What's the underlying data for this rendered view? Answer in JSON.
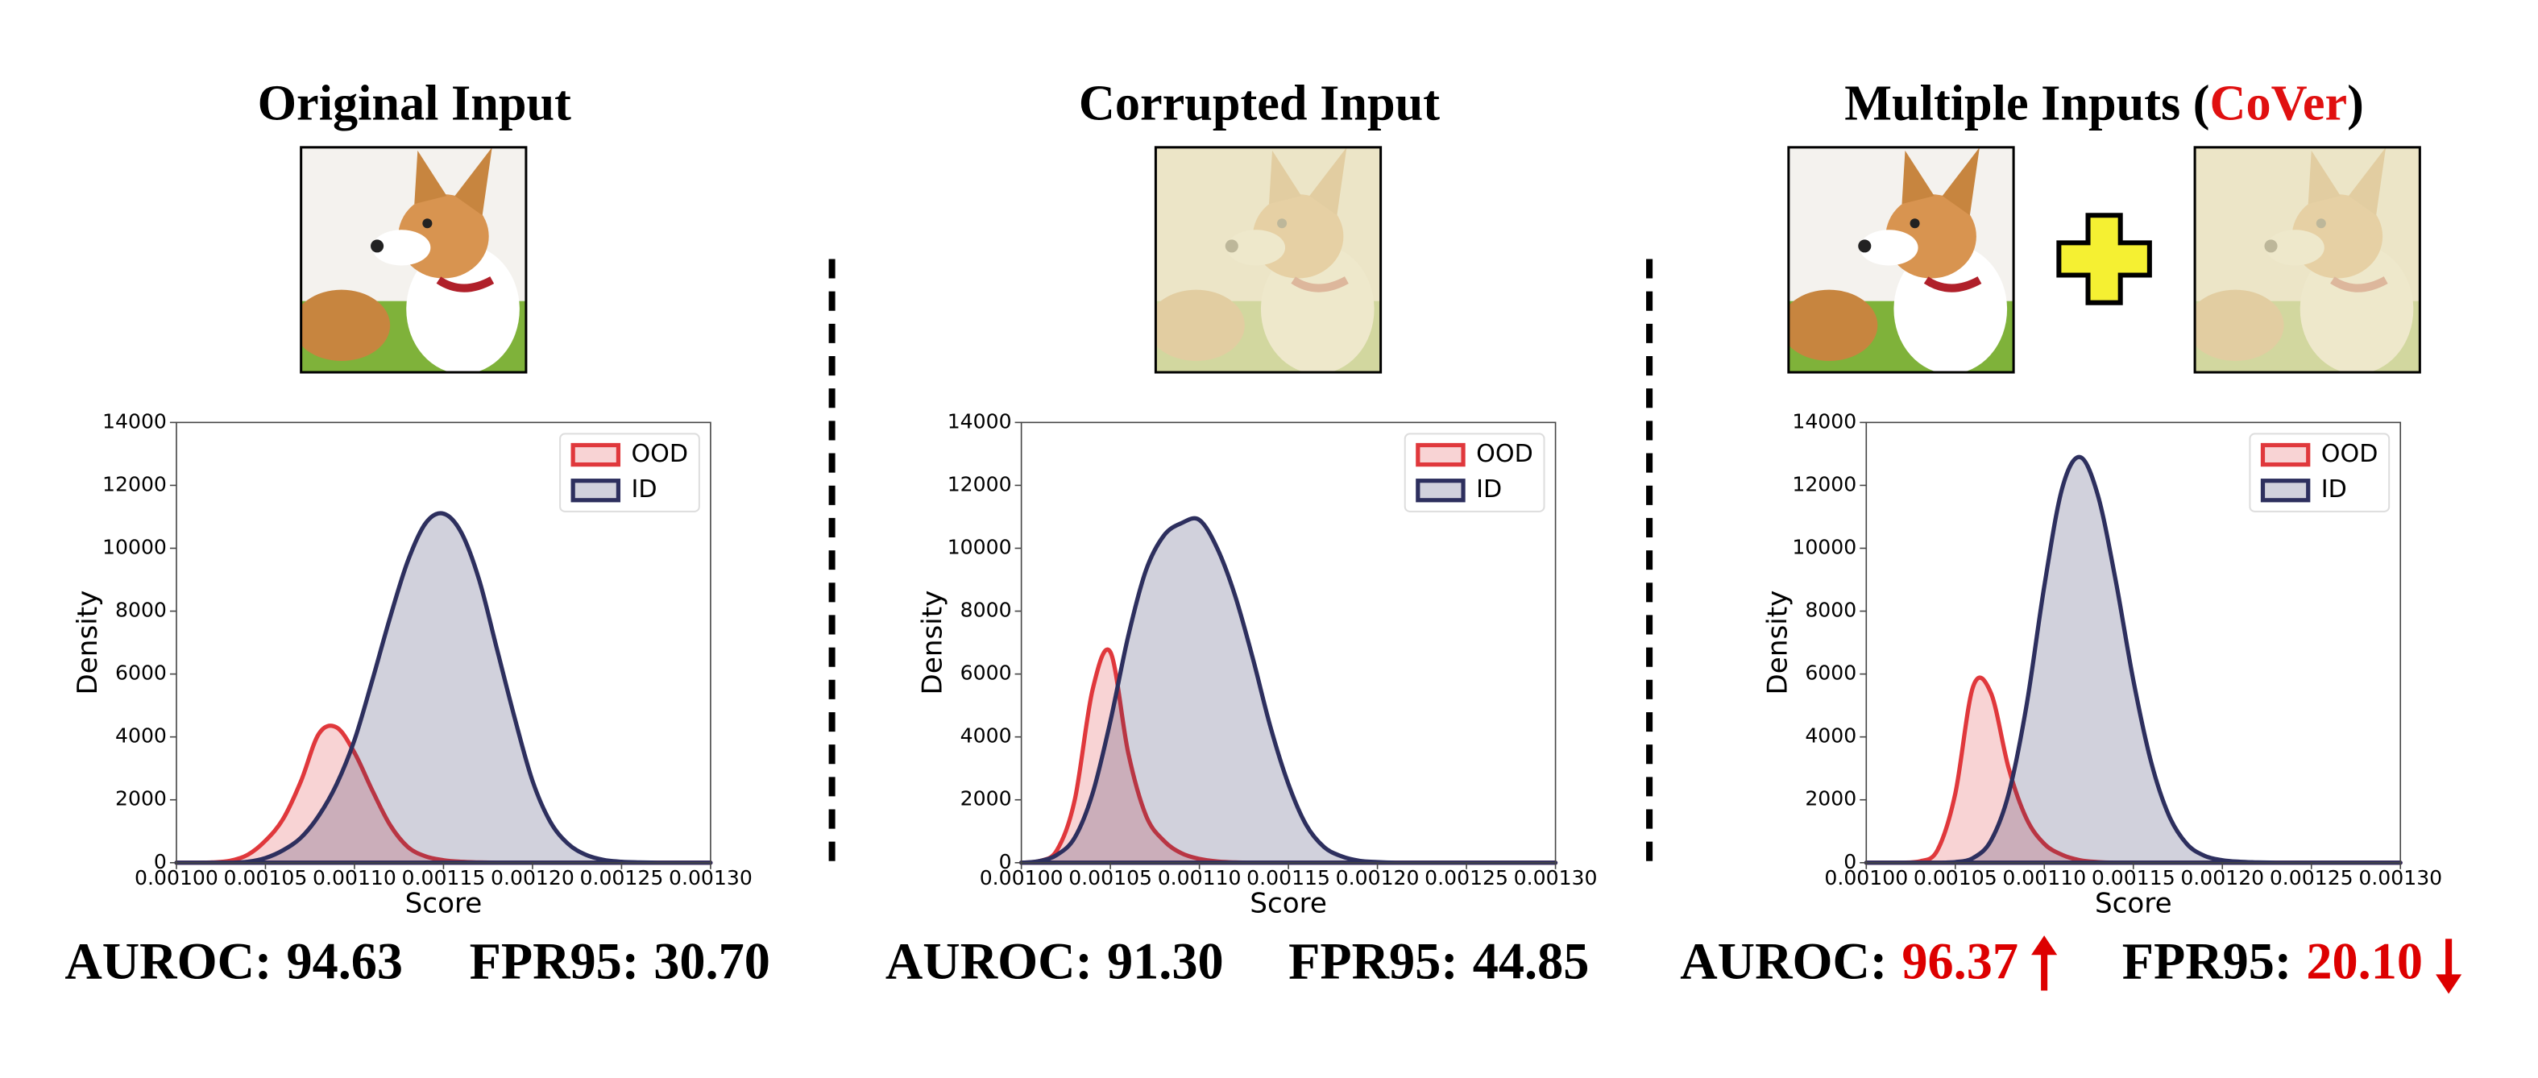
{
  "chart_data": [
    {
      "type": "kde",
      "title": [
        "Original Input"
      ],
      "title_colors": [
        "#000000"
      ],
      "xlabel": "Score",
      "ylabel": "Density",
      "x": [
        0.001,
        0.00101,
        0.00102,
        0.00103,
        0.00104,
        0.00105,
        0.00106,
        0.00107,
        0.00108,
        0.00109,
        0.0011,
        0.00111,
        0.00112,
        0.00113,
        0.00114,
        0.00115,
        0.00116,
        0.00117,
        0.00118,
        0.00119,
        0.0012,
        0.00121,
        0.00122,
        0.00123,
        0.00124,
        0.00125,
        0.00126,
        0.00127,
        0.00128,
        0.00129,
        0.0013
      ],
      "series": [
        {
          "name": "OOD",
          "color": "#e0383c",
          "values": [
            0,
            0,
            10,
            60,
            250,
            700,
            1400,
            2600,
            4100,
            4300,
            3500,
            2300,
            1200,
            500,
            200,
            80,
            30,
            10,
            0,
            0,
            0,
            0,
            0,
            0,
            0,
            0,
            0,
            0,
            0,
            0,
            0
          ]
        },
        {
          "name": "ID",
          "color": "#2d2f5e",
          "values": [
            0,
            0,
            0,
            0,
            30,
            150,
            400,
            800,
            1500,
            2500,
            3900,
            5800,
            7800,
            9600,
            10800,
            11100,
            10500,
            9000,
            6800,
            4600,
            2600,
            1300,
            600,
            250,
            90,
            30,
            10,
            0,
            0,
            0,
            0
          ]
        }
      ],
      "xlim": [
        0.001,
        0.0013
      ],
      "xticks": [
        {
          "value": 0.001,
          "label": "0.00100"
        },
        {
          "value": 0.00105,
          "label": "0.00105"
        },
        {
          "value": 0.0011,
          "label": "0.00110"
        },
        {
          "value": 0.00115,
          "label": "0.00115"
        },
        {
          "value": 0.0012,
          "label": "0.00120"
        },
        {
          "value": 0.00125,
          "label": "0.00125"
        },
        {
          "value": 0.0013,
          "label": "0.00130"
        }
      ],
      "ylim": [
        0,
        14000
      ],
      "yticks": [
        0,
        2000,
        4000,
        6000,
        8000,
        10000,
        12000,
        14000
      ],
      "legend": "upper right",
      "metrics": [
        {
          "label": "AUROC:",
          "value": "94.63"
        },
        {
          "label": "FPR95:",
          "value": "30.70"
        }
      ],
      "metric_color": "#000000"
    },
    {
      "type": "kde",
      "title": [
        "Corrupted Input"
      ],
      "title_colors": [
        "#000000"
      ],
      "xlabel": "Score",
      "ylabel": "Density",
      "x": [
        0.001,
        0.00101,
        0.00102,
        0.00103,
        0.00104,
        0.00105,
        0.00106,
        0.00107,
        0.00108,
        0.00109,
        0.0011,
        0.00111,
        0.00112,
        0.00113,
        0.00114,
        0.00115,
        0.00116,
        0.00117,
        0.00118,
        0.00119,
        0.0012,
        0.00121,
        0.00122,
        0.00123,
        0.00124,
        0.00125,
        0.00126,
        0.00127,
        0.00128,
        0.00129,
        0.0013
      ],
      "series": [
        {
          "name": "OOD",
          "color": "#e0383c",
          "values": [
            0,
            50,
            400,
            2000,
            5500,
            6700,
            3500,
            1500,
            700,
            300,
            120,
            40,
            10,
            0,
            0,
            0,
            0,
            0,
            0,
            0,
            0,
            0,
            0,
            0,
            0,
            0,
            0,
            0,
            0,
            0,
            0
          ]
        },
        {
          "name": "ID",
          "color": "#2d2f5e",
          "values": [
            0,
            50,
            250,
            800,
            2200,
            4500,
            7200,
            9300,
            10400,
            10800,
            10900,
            10000,
            8500,
            6500,
            4300,
            2500,
            1200,
            500,
            200,
            60,
            20,
            0,
            0,
            0,
            0,
            0,
            0,
            0,
            0,
            0,
            0
          ]
        }
      ],
      "xlim": [
        0.001,
        0.0013
      ],
      "xticks": [
        {
          "value": 0.001,
          "label": "0.00100"
        },
        {
          "value": 0.00105,
          "label": "0.00105"
        },
        {
          "value": 0.0011,
          "label": "0.00110"
        },
        {
          "value": 0.00115,
          "label": "0.00115"
        },
        {
          "value": 0.0012,
          "label": "0.00120"
        },
        {
          "value": 0.00125,
          "label": "0.00125"
        },
        {
          "value": 0.0013,
          "label": "0.00130"
        }
      ],
      "ylim": [
        0,
        14000
      ],
      "yticks": [
        0,
        2000,
        4000,
        6000,
        8000,
        10000,
        12000,
        14000
      ],
      "legend": "upper right",
      "metrics": [
        {
          "label": "AUROC:",
          "value": "91.30"
        },
        {
          "label": "FPR95:",
          "value": "44.85"
        }
      ],
      "metric_color": "#000000"
    },
    {
      "type": "kde",
      "title": [
        "Multiple Inputs (",
        "CoVer",
        ")"
      ],
      "title_colors": [
        "#000000",
        "#e01010",
        "#000000"
      ],
      "xlabel": "Score",
      "ylabel": "Density",
      "x": [
        0.001,
        0.00101,
        0.00102,
        0.00103,
        0.00104,
        0.00105,
        0.00106,
        0.00107,
        0.00108,
        0.00109,
        0.0011,
        0.00111,
        0.00112,
        0.00113,
        0.00114,
        0.00115,
        0.00116,
        0.00117,
        0.00118,
        0.00119,
        0.0012,
        0.00121,
        0.00122,
        0.00123,
        0.00124,
        0.00125,
        0.00126,
        0.00127,
        0.00128,
        0.00129,
        0.0013
      ],
      "series": [
        {
          "name": "OOD",
          "color": "#e0383c",
          "values": [
            0,
            0,
            0,
            40,
            400,
            2200,
            5600,
            5400,
            3000,
            1400,
            600,
            250,
            80,
            20,
            0,
            0,
            0,
            0,
            0,
            0,
            0,
            0,
            0,
            0,
            0,
            0,
            0,
            0,
            0,
            0,
            0
          ]
        },
        {
          "name": "ID",
          "color": "#2d2f5e",
          "values": [
            0,
            0,
            0,
            0,
            0,
            20,
            150,
            700,
            2200,
            5000,
            8800,
            11900,
            12900,
            11700,
            9000,
            5800,
            3200,
            1500,
            600,
            220,
            80,
            30,
            10,
            0,
            0,
            0,
            0,
            0,
            0,
            0,
            0
          ]
        }
      ],
      "xlim": [
        0.001,
        0.0013
      ],
      "xticks": [
        {
          "value": 0.001,
          "label": "0.00100"
        },
        {
          "value": 0.00105,
          "label": "0.00105"
        },
        {
          "value": 0.0011,
          "label": "0.00110"
        },
        {
          "value": 0.00115,
          "label": "0.00115"
        },
        {
          "value": 0.0012,
          "label": "0.00120"
        },
        {
          "value": 0.00125,
          "label": "0.00125"
        },
        {
          "value": 0.0013,
          "label": "0.00130"
        }
      ],
      "ylim": [
        0,
        14000
      ],
      "yticks": [
        0,
        2000,
        4000,
        6000,
        8000,
        10000,
        12000,
        14000
      ],
      "legend": "upper right",
      "metrics": [
        {
          "label": "AUROC:",
          "value": "96.37"
        },
        {
          "label": "FPR95:",
          "value": "20.10"
        }
      ],
      "metric_color": "#dd0000",
      "trends": [
        "up",
        "down"
      ]
    }
  ]
}
